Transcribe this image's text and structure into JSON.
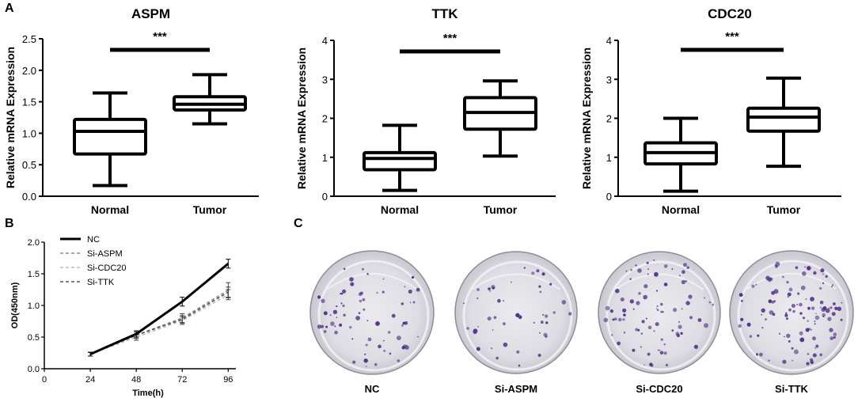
{
  "panels": {
    "a": "A",
    "b": "B",
    "c": "C"
  },
  "chart_data": [
    {
      "type": "box",
      "title": "ASPM",
      "ylabel": "Relative mRNA Expression",
      "categories": [
        "Normal",
        "Tumor"
      ],
      "ylim": [
        0,
        2.5
      ],
      "yticks": [
        "0.0",
        "0.5",
        "1.0",
        "1.5",
        "2.0",
        "2.5"
      ],
      "boxes": [
        {
          "min": 0.17,
          "q1": 0.67,
          "median": 1.03,
          "q3": 1.22,
          "max": 1.64
        },
        {
          "min": 1.15,
          "q1": 1.37,
          "median": 1.46,
          "q3": 1.58,
          "max": 1.93
        }
      ],
      "significance": "***"
    },
    {
      "type": "box",
      "title": "TTK",
      "ylabel": "Relative mRNA Expression",
      "categories": [
        "Normal",
        "Tumor"
      ],
      "ylim": [
        0,
        4
      ],
      "yticks": [
        "0",
        "1",
        "2",
        "3",
        "4"
      ],
      "boxes": [
        {
          "min": 0.15,
          "q1": 0.68,
          "median": 0.97,
          "q3": 1.12,
          "max": 1.82
        },
        {
          "min": 1.03,
          "q1": 1.72,
          "median": 2.15,
          "q3": 2.53,
          "max": 2.96
        }
      ],
      "significance": "***"
    },
    {
      "type": "box",
      "title": "CDC20",
      "ylabel": "Relative mRNA Expression",
      "categories": [
        "Normal",
        "Tumor"
      ],
      "ylim": [
        0,
        4
      ],
      "yticks": [
        "0",
        "1",
        "2",
        "3",
        "4"
      ],
      "boxes": [
        {
          "min": 0.13,
          "q1": 0.83,
          "median": 1.12,
          "q3": 1.37,
          "max": 2.0
        },
        {
          "min": 0.77,
          "q1": 1.67,
          "median": 2.03,
          "q3": 2.26,
          "max": 3.03
        }
      ],
      "significance": "***"
    },
    {
      "type": "line",
      "title": "",
      "xlabel": "Time(h)",
      "ylabel": "OD(450nm)",
      "x": [
        24,
        48,
        72,
        96
      ],
      "xlim": [
        0,
        100
      ],
      "ylim": [
        0,
        2.0
      ],
      "xticks": [
        "0",
        "24",
        "48",
        "72",
        "96"
      ],
      "yticks": [
        "0.0",
        "0.5",
        "1.0",
        "1.5",
        "2.0"
      ],
      "legend_position": "top-left",
      "series": [
        {
          "name": "NC",
          "color": "#000000",
          "dash": "",
          "width": 3,
          "values": [
            0.23,
            0.55,
            1.06,
            1.66
          ],
          "err": [
            0.03,
            0.05,
            0.07,
            0.07
          ]
        },
        {
          "name": "Si-ASPM",
          "color": "#8a8a8a",
          "dash": "4,3",
          "width": 1.6,
          "values": [
            0.23,
            0.53,
            0.8,
            1.24
          ],
          "err": [
            0.03,
            0.05,
            0.07,
            0.12
          ]
        },
        {
          "name": "Si-CDC20",
          "color": "#bdbdbd",
          "dash": "4,3",
          "width": 1.6,
          "values": [
            0.23,
            0.5,
            0.76,
            1.17
          ],
          "err": [
            0.03,
            0.05,
            0.06,
            0.08
          ]
        },
        {
          "name": "Si-TTK",
          "color": "#555555",
          "dash": "4,3",
          "width": 1.6,
          "values": [
            0.23,
            0.53,
            0.78,
            1.21
          ],
          "err": [
            0.03,
            0.05,
            0.06,
            0.08
          ]
        }
      ]
    }
  ],
  "colony_plates": [
    "NC",
    "Si-ASPM",
    "Si-CDC20",
    "Si-TTK"
  ]
}
